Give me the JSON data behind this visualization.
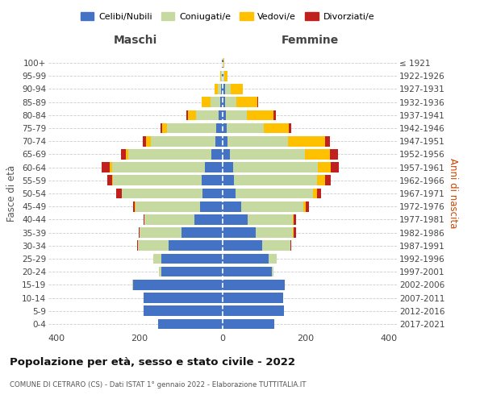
{
  "age_groups": [
    "0-4",
    "5-9",
    "10-14",
    "15-19",
    "20-24",
    "25-29",
    "30-34",
    "35-39",
    "40-44",
    "45-49",
    "50-54",
    "55-59",
    "60-64",
    "65-69",
    "70-74",
    "75-79",
    "80-84",
    "85-89",
    "90-94",
    "95-99",
    "100+"
  ],
  "birth_years": [
    "2017-2021",
    "2012-2016",
    "2007-2011",
    "2002-2006",
    "1997-2001",
    "1992-1996",
    "1987-1991",
    "1982-1986",
    "1977-1981",
    "1972-1976",
    "1967-1971",
    "1962-1966",
    "1957-1961",
    "1952-1956",
    "1947-1951",
    "1942-1946",
    "1937-1941",
    "1932-1936",
    "1927-1931",
    "1922-1926",
    "≤ 1921"
  ],
  "maschi": {
    "celibe": [
      155,
      190,
      190,
      215,
      148,
      148,
      130,
      100,
      68,
      55,
      48,
      50,
      42,
      28,
      18,
      15,
      10,
      5,
      3,
      2,
      1
    ],
    "coniugato": [
      0,
      0,
      1,
      2,
      5,
      20,
      75,
      100,
      120,
      155,
      195,
      215,
      225,
      200,
      155,
      120,
      55,
      25,
      8,
      2,
      0
    ],
    "vedovo": [
      0,
      0,
      0,
      0,
      0,
      0,
      0,
      0,
      0,
      1,
      1,
      2,
      5,
      5,
      12,
      10,
      18,
      20,
      8,
      2,
      0
    ],
    "divorziato": [
      0,
      0,
      0,
      0,
      0,
      0,
      2,
      2,
      2,
      5,
      12,
      12,
      20,
      12,
      8,
      5,
      5,
      0,
      0,
      0,
      0
    ]
  },
  "femmine": {
    "celibe": [
      125,
      148,
      145,
      150,
      118,
      110,
      95,
      80,
      60,
      45,
      32,
      28,
      25,
      18,
      12,
      10,
      8,
      5,
      5,
      2,
      1
    ],
    "coniugato": [
      0,
      0,
      0,
      0,
      5,
      20,
      68,
      90,
      110,
      150,
      185,
      200,
      205,
      180,
      145,
      90,
      50,
      28,
      15,
      2,
      0
    ],
    "vedovo": [
      0,
      0,
      0,
      0,
      0,
      0,
      1,
      2,
      2,
      5,
      10,
      18,
      30,
      60,
      90,
      60,
      65,
      50,
      28,
      8,
      2
    ],
    "divorziato": [
      0,
      0,
      0,
      0,
      0,
      0,
      2,
      5,
      5,
      8,
      10,
      15,
      20,
      20,
      12,
      5,
      5,
      2,
      0,
      0,
      0
    ]
  },
  "colors": {
    "celibe": "#4472c4",
    "coniugato": "#c5d9a0",
    "vedovo": "#ffc000",
    "divorziato": "#c0211e"
  },
  "legend_labels": [
    "Celibi/Nubili",
    "Coniugati/e",
    "Vedovi/e",
    "Divorziati/e"
  ],
  "title_main": "Popolazione per età, sesso e stato civile - 2022",
  "title_sub": "COMUNE DI CETRARO (CS) - Dati ISTAT 1° gennaio 2022 - Elaborazione TUTTITALIA.IT",
  "xlabel_left": "Maschi",
  "xlabel_right": "Femmine",
  "ylabel_left": "Fasce di età",
  "ylabel_right": "Anni di nascita",
  "xlim": 420,
  "background_color": "#ffffff",
  "grid_color": "#cccccc"
}
